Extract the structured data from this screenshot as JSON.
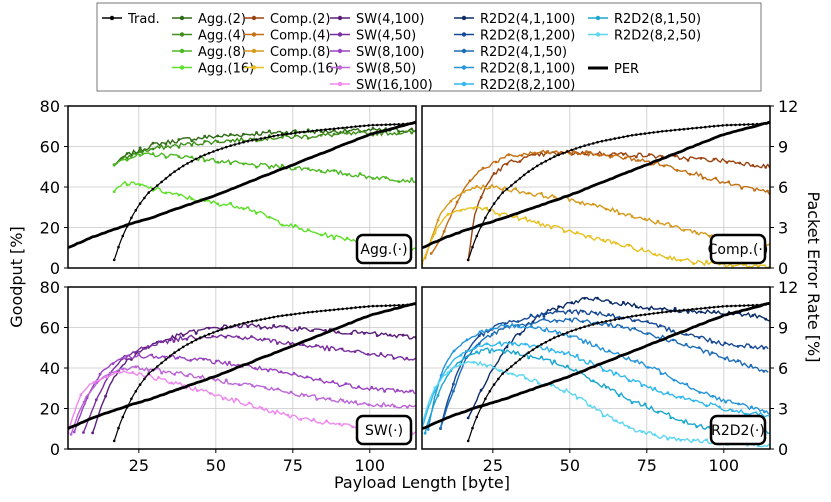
{
  "chart_data": {
    "type": "line",
    "xlabel": "Payload Length [byte]",
    "ylabel": "Goodput [%]",
    "y2label": "Packet Error Rate [%]",
    "xlim": [
      2,
      115
    ],
    "ylim": [
      0,
      80
    ],
    "y2lim": [
      0,
      12
    ],
    "xticks": [
      "25",
      "50",
      "75",
      "100"
    ],
    "yticks": [
      "0",
      "20",
      "40",
      "60",
      "80"
    ],
    "y2ticks": [
      "0",
      "3",
      "6",
      "9",
      "12"
    ],
    "traditional": {
      "name": "Trad.",
      "color": "#000000",
      "x": [
        17,
        19,
        21,
        23,
        25,
        28,
        32,
        36,
        40,
        45,
        50,
        55,
        60,
        70,
        80,
        90,
        100,
        110,
        115
      ],
      "y": [
        4,
        13,
        20,
        26,
        31,
        37,
        42,
        47,
        51,
        55,
        58,
        60.5,
        62.5,
        65.5,
        67.5,
        69,
        70.5,
        71,
        71.5
      ]
    },
    "per": {
      "name": "PER",
      "color": "#000000",
      "x": [
        2,
        10,
        20,
        30,
        40,
        50,
        60,
        70,
        80,
        90,
        100,
        110,
        115
      ],
      "y": [
        1.5,
        2.3,
        3.1,
        3.8,
        4.6,
        5.4,
        6.3,
        7.2,
        8.1,
        9.0,
        9.9,
        10.5,
        10.8
      ]
    },
    "legend_other": "PER",
    "panels": [
      {
        "label": "Agg.(·)",
        "series": [
          {
            "name": "Agg.(2)",
            "color": "#2e6b14",
            "x": [
              17,
              20,
              25,
              30,
              40,
              50,
              60,
              70,
              80,
              90,
              100,
              115
            ],
            "y": [
              51,
              55,
              58,
              61,
              63.5,
              65,
              66,
              67,
              67.5,
              67.5,
              68,
              68
            ]
          },
          {
            "name": "Agg.(4)",
            "color": "#3f8f1a",
            "x": [
              17,
              20,
              25,
              30,
              40,
              50,
              60,
              70,
              80,
              90,
              100,
              115
            ],
            "y": [
              51,
              54,
              57,
              59,
              61,
              62.5,
              63.5,
              64.5,
              65,
              66,
              66.5,
              67
            ]
          },
          {
            "name": "Agg.(8)",
            "color": "#4cb822",
            "x": [
              17,
              20,
              25,
              30,
              40,
              50,
              60,
              70,
              80,
              90,
              100,
              115
            ],
            "y": [
              51,
              54,
              55.5,
              56,
              55,
              53,
              51,
              50,
              49,
              47,
              45,
              43
            ]
          },
          {
            "name": "Agg.(16)",
            "color": "#5fe02a",
            "x": [
              17,
              20,
              25,
              30,
              40,
              50,
              60,
              70,
              80,
              90,
              100,
              115
            ],
            "y": [
              38,
              42,
              41,
              39,
              35,
              32,
              30,
              23,
              18,
              15,
              13,
              9
            ]
          }
        ]
      },
      {
        "label": "Comp.(·)",
        "series": [
          {
            "name": "Comp.(2)",
            "color": "#9c4410",
            "x": [
              17,
              19,
              22,
              25,
              30,
              40,
              50,
              60,
              70,
              80,
              90,
              100,
              115
            ],
            "y": [
              4,
              26,
              38,
              46,
              52,
              56,
              57,
              56.5,
              56,
              55,
              54,
              53,
              50
            ]
          },
          {
            "name": "Comp.(4)",
            "color": "#c36f14",
            "x": [
              5,
              8,
              12,
              16,
              20,
              25,
              30,
              40,
              50,
              60,
              70,
              80,
              90,
              100,
              115
            ],
            "y": [
              7,
              14,
              28,
              40,
              47,
              52,
              55,
              57,
              57,
              56,
              54,
              51,
              47,
              42,
              37
            ]
          },
          {
            "name": "Comp.(8)",
            "color": "#d69a1e",
            "x": [
              3,
              5,
              8,
              12,
              16,
              20,
              25,
              30,
              40,
              50,
              60,
              70,
              80,
              90,
              100,
              115
            ],
            "y": [
              5,
              14,
              27,
              34,
              38,
              40,
              40,
              39,
              36,
              34,
              30,
              26,
              22,
              18,
              15,
              12
            ]
          },
          {
            "name": "Comp.(16)",
            "color": "#e8c020",
            "x": [
              2,
              4,
              7,
              10,
              13,
              16,
              20,
              25,
              30,
              40,
              50,
              60,
              70,
              80,
              90,
              100,
              115
            ],
            "y": [
              2,
              10,
              20,
              26,
              28,
              29,
              30,
              28,
              26,
              22,
              18,
              14,
              10,
              6,
              3,
              1.5,
              1
            ]
          }
        ]
      },
      {
        "label": "SW(·)",
        "series": [
          {
            "name": "SW(4,100)",
            "color": "#5a1e7a",
            "x": [
              10,
              13,
              16,
              20,
              25,
              30,
              40,
              50,
              60,
              70,
              80,
              90,
              100,
              115
            ],
            "y": [
              8,
              22,
              33,
              42,
              48,
              52,
              57,
              60,
              61,
              60,
              59,
              58,
              57,
              55
            ]
          },
          {
            "name": "SW(4,50)",
            "color": "#7a2e9e",
            "x": [
              7,
              10,
              13,
              16,
              20,
              25,
              30,
              40,
              50,
              60,
              70,
              80,
              90,
              100,
              115
            ],
            "y": [
              8,
              20,
              30,
              38,
              45,
              49,
              52,
              55,
              56,
              55,
              53,
              51,
              49,
              47,
              44
            ]
          },
          {
            "name": "SW(8,100)",
            "color": "#9a42c0",
            "x": [
              4,
              7,
              10,
              13,
              16,
              20,
              25,
              30,
              40,
              50,
              60,
              70,
              80,
              90,
              100,
              115
            ],
            "y": [
              8,
              21,
              31,
              38,
              42,
              45,
              46,
              46,
              45,
              43,
              41,
              38,
              35,
              32,
              30,
              28
            ]
          },
          {
            "name": "SW(8,50)",
            "color": "#bc66d8",
            "x": [
              3,
              5,
              8,
              11,
              14,
              17,
              20,
              25,
              30,
              40,
              50,
              60,
              70,
              80,
              90,
              100,
              115
            ],
            "y": [
              7,
              16,
              26,
              32,
              36,
              38,
              40,
              40,
              39,
              37,
              34,
              32,
              29,
              26,
              24,
              22,
              21
            ]
          },
          {
            "name": "SW(16,100)",
            "color": "#ee88ee",
            "x": [
              2,
              4,
              6,
              9,
              12,
              15,
              18,
              22,
              26,
              30,
              40,
              50,
              60,
              70,
              80,
              90,
              100,
              115
            ],
            "y": [
              8,
              18,
              26,
              32,
              34,
              36,
              38,
              38,
              37,
              35,
              31,
              27,
              22,
              18,
              14,
              12,
              10,
              8
            ]
          }
        ]
      },
      {
        "label": "R2D2(·)",
        "series": [
          {
            "name": "R2D2(4,1,100)",
            "color": "#0b2c66",
            "x": [
              17,
              20,
              25,
              30,
              40,
              50,
              55,
              60,
              70,
              80,
              90,
              100,
              110,
              115
            ],
            "y": [
              15,
              25,
              40,
              52,
              66,
              72,
              74,
              73.5,
              71,
              69,
              68,
              67,
              66,
              64
            ]
          },
          {
            "name": "R2D2(8,1,200)",
            "color": "#164a96",
            "x": [
              8,
              10,
              13,
              16,
              20,
              25,
              30,
              40,
              50,
              60,
              70,
              80,
              90,
              100,
              115
            ],
            "y": [
              10,
              22,
              36,
              47,
              55,
              60,
              63,
              66,
              68,
              67,
              64,
              60,
              56,
              52,
              50
            ]
          },
          {
            "name": "R2D2(4,1,50)",
            "color": "#1c6cb8",
            "x": [
              8,
              10,
              13,
              16,
              20,
              25,
              30,
              40,
              50,
              60,
              70,
              80,
              90,
              100,
              115
            ],
            "y": [
              10,
              20,
              32,
              44,
              52,
              57,
              60,
              63,
              64,
              62,
              59,
              55,
              50,
              45,
              38
            ]
          },
          {
            "name": "R2D2(8,1,100)",
            "color": "#2694da",
            "x": [
              4,
              6,
              9,
              12,
              15,
              18,
              22,
              26,
              30,
              40,
              50,
              60,
              70,
              80,
              90,
              100,
              115
            ],
            "y": [
              10,
              25,
              40,
              48,
              52,
              55,
              58,
              60,
              61,
              60,
              56,
              50,
              44,
              38,
              30,
              24,
              18
            ]
          },
          {
            "name": "R2D2(8,2,100)",
            "color": "#30b8ee",
            "x": [
              2,
              4,
              7,
              10,
              13,
              16,
              20,
              25,
              30,
              40,
              50,
              60,
              70,
              80,
              90,
              100,
              115
            ],
            "y": [
              10,
              20,
              32,
              40,
              45,
              48,
              50,
              52,
              52,
              50,
              47,
              40,
              34,
              28,
              24,
              20,
              16
            ]
          },
          {
            "name": "R2D2(8,1,50)",
            "color": "#1aa8d0",
            "x": [
              3,
              5,
              8,
              11,
              14,
              17,
              20,
              25,
              30,
              40,
              50,
              60,
              70,
              80,
              90,
              100,
              115
            ],
            "y": [
              8,
              18,
              30,
              38,
              43,
              46,
              48,
              49,
              48,
              45,
              40,
              32,
              24,
              18,
              12,
              9,
              8
            ]
          },
          {
            "name": "R2D2(8,2,50)",
            "color": "#5dd6f2",
            "x": [
              2,
              4,
              6,
              9,
              12,
              15,
              18,
              22,
              26,
              30,
              40,
              50,
              60,
              70,
              80,
              90,
              100,
              115
            ],
            "y": [
              12,
              22,
              30,
              36,
              40,
              42,
              43,
              42,
              40,
              38,
              33,
              28,
              18,
              10,
              6,
              4,
              3,
              2
            ]
          }
        ]
      }
    ]
  }
}
